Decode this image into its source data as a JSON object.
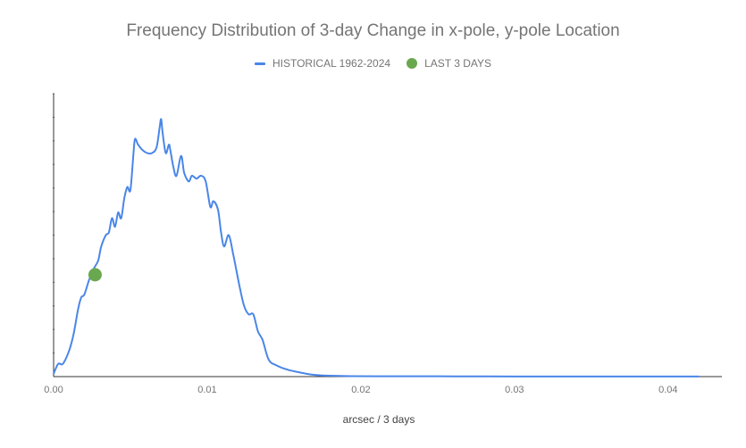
{
  "chart_data": {
    "type": "line",
    "title": "Frequency Distribution of 3-day Change in x-pole, y-pole Location",
    "xlabel": "arcsec / 3 days",
    "ylabel": "",
    "xlim": [
      0,
      0.0435
    ],
    "ylim": [
      0,
      1.0
    ],
    "x_ticks": [
      {
        "value": 0,
        "label": "0.00"
      },
      {
        "value": 0.01,
        "label": "0.01"
      },
      {
        "value": 0.02,
        "label": "0.02"
      },
      {
        "value": 0.03,
        "label": "0.03"
      },
      {
        "value": 0.04,
        "label": "0.04"
      }
    ],
    "y_tick_labels_shown": false,
    "grid": false,
    "legend_position": "top",
    "series": [
      {
        "name": "HISTORICAL 1962-2024",
        "style": "line",
        "color": "#4a86e8",
        "points": [
          [
            0.0,
            0.01
          ],
          [
            0.0003,
            0.045
          ],
          [
            0.0006,
            0.045
          ],
          [
            0.001,
            0.09
          ],
          [
            0.0013,
            0.15
          ],
          [
            0.0016,
            0.24
          ],
          [
            0.0018,
            0.28
          ],
          [
            0.002,
            0.29
          ],
          [
            0.0023,
            0.34
          ],
          [
            0.0026,
            0.38
          ],
          [
            0.0029,
            0.41
          ],
          [
            0.0031,
            0.46
          ],
          [
            0.0034,
            0.5
          ],
          [
            0.0036,
            0.51
          ],
          [
            0.0038,
            0.56
          ],
          [
            0.004,
            0.53
          ],
          [
            0.0042,
            0.58
          ],
          [
            0.0044,
            0.56
          ],
          [
            0.0046,
            0.63
          ],
          [
            0.0048,
            0.67
          ],
          [
            0.005,
            0.66
          ],
          [
            0.0052,
            0.79
          ],
          [
            0.0053,
            0.84
          ],
          [
            0.0055,
            0.82
          ],
          [
            0.0058,
            0.8
          ],
          [
            0.0061,
            0.79
          ],
          [
            0.0064,
            0.79
          ],
          [
            0.0067,
            0.81
          ],
          [
            0.0069,
            0.88
          ],
          [
            0.007,
            0.91
          ],
          [
            0.0071,
            0.86
          ],
          [
            0.0073,
            0.79
          ],
          [
            0.0075,
            0.82
          ],
          [
            0.0076,
            0.8
          ],
          [
            0.0078,
            0.74
          ],
          [
            0.008,
            0.71
          ],
          [
            0.0083,
            0.78
          ],
          [
            0.0085,
            0.72
          ],
          [
            0.0088,
            0.69
          ],
          [
            0.009,
            0.71
          ],
          [
            0.0093,
            0.7
          ],
          [
            0.0096,
            0.71
          ],
          [
            0.0099,
            0.69
          ],
          [
            0.0102,
            0.6
          ],
          [
            0.0104,
            0.62
          ],
          [
            0.0107,
            0.59
          ],
          [
            0.0109,
            0.51
          ],
          [
            0.0111,
            0.46
          ],
          [
            0.0114,
            0.5
          ],
          [
            0.0117,
            0.43
          ],
          [
            0.0121,
            0.32
          ],
          [
            0.0124,
            0.25
          ],
          [
            0.0127,
            0.22
          ],
          [
            0.013,
            0.22
          ],
          [
            0.0133,
            0.16
          ],
          [
            0.0136,
            0.13
          ],
          [
            0.014,
            0.06
          ],
          [
            0.0145,
            0.04
          ],
          [
            0.0152,
            0.025
          ],
          [
            0.016,
            0.015
          ],
          [
            0.0168,
            0.007
          ],
          [
            0.0175,
            0.004
          ],
          [
            0.019,
            0.002
          ],
          [
            0.021,
            0.001
          ],
          [
            0.025,
            0.001
          ],
          [
            0.03,
            0.0005
          ],
          [
            0.035,
            0.0005
          ],
          [
            0.042,
            0.0004
          ]
        ]
      },
      {
        "name": "LAST 3 DAYS",
        "style": "point",
        "color": "#6aa84f",
        "points": [
          [
            0.0027,
            0.36
          ]
        ]
      }
    ]
  }
}
